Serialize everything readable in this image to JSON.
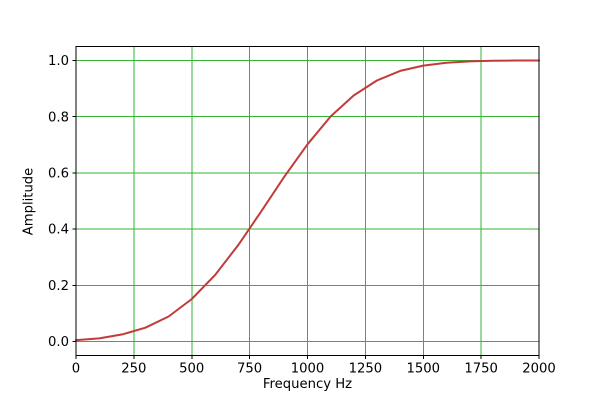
{
  "chart_data": {
    "type": "line",
    "title": "",
    "xlabel": "Frequency Hz",
    "ylabel": "Amplitude",
    "xlim": [
      0,
      2000
    ],
    "ylim": [
      -0.05,
      1.05
    ],
    "xticks": [
      0,
      250,
      500,
      750,
      1000,
      1250,
      1500,
      1750,
      2000
    ],
    "xtick_labels": [
      "0",
      "250",
      "500",
      "750",
      "1000",
      "1250",
      "1500",
      "1750",
      "2000"
    ],
    "yticks": [
      0.0,
      0.2,
      0.4,
      0.6,
      0.8,
      1.0
    ],
    "ytick_labels": [
      "0.0",
      "0.2",
      "0.4",
      "0.6",
      "0.8",
      "1.0"
    ],
    "grid": true,
    "legend_position": "none",
    "colors": {
      "grid": "#33b533",
      "line": "#c23b3b",
      "spine": "#000000",
      "text": "#000000",
      "background": "#ffffff"
    },
    "line_width": 2,
    "series": [
      {
        "name": "amplitude-response",
        "x": [
          0,
          100,
          200,
          300,
          400,
          500,
          600,
          700,
          800,
          900,
          1000,
          1100,
          1200,
          1300,
          1400,
          1500,
          1600,
          1700,
          1800,
          1900,
          2000
        ],
        "y": [
          0.005,
          0.011,
          0.025,
          0.049,
          0.089,
          0.151,
          0.236,
          0.342,
          0.463,
          0.587,
          0.702,
          0.801,
          0.876,
          0.929,
          0.963,
          0.982,
          0.992,
          0.997,
          0.999,
          1.0,
          1.0
        ]
      }
    ]
  }
}
